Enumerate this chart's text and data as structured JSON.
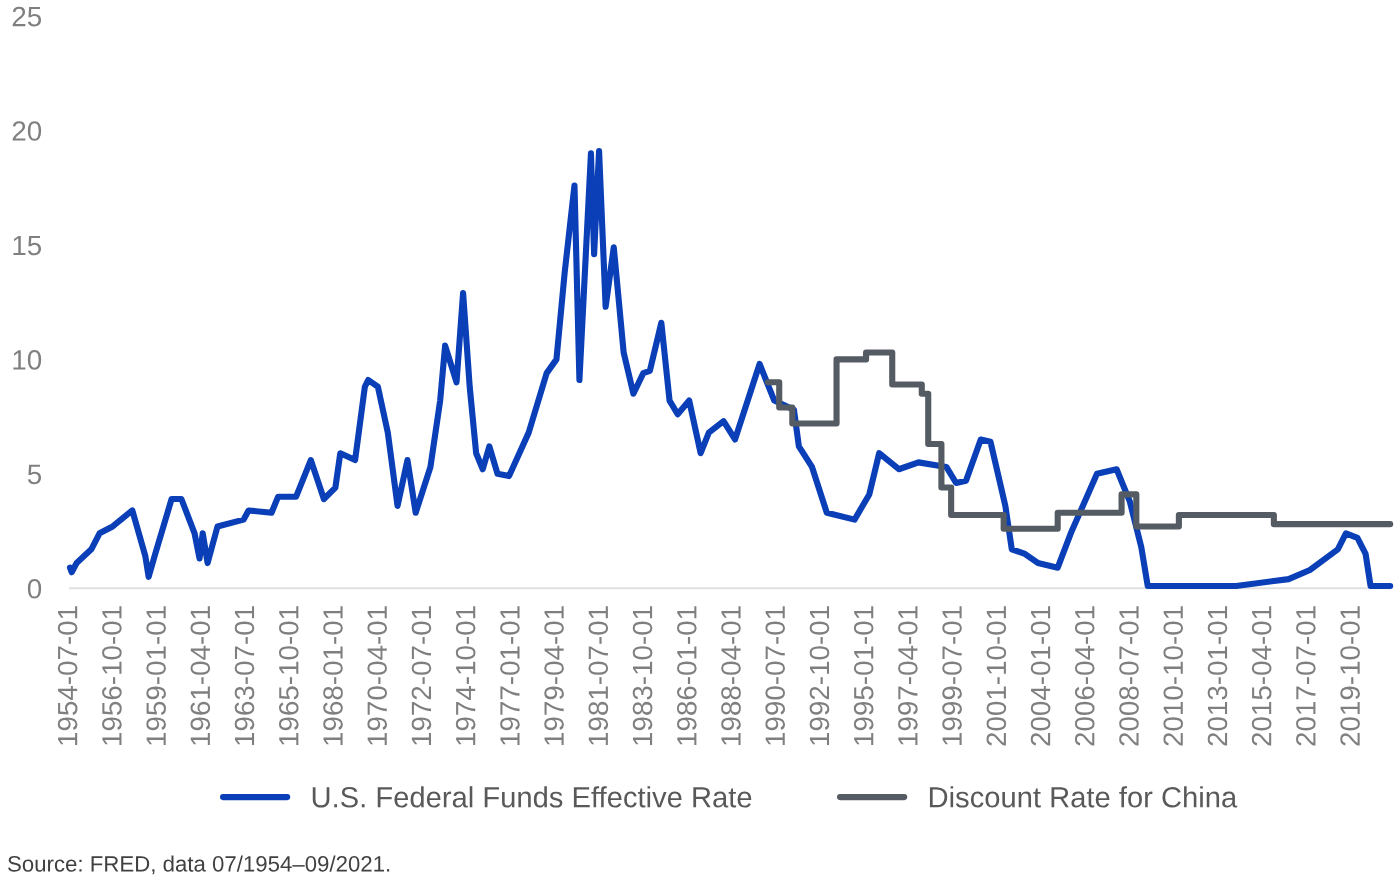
{
  "chart_data": {
    "type": "line",
    "xticks": [
      "1954-07-01",
      "1956-10-01",
      "1959-01-01",
      "1961-04-01",
      "1963-07-01",
      "1965-10-01",
      "1968-01-01",
      "1970-04-01",
      "1972-07-01",
      "1974-10-01",
      "1977-01-01",
      "1979-04-01",
      "1981-07-01",
      "1983-10-01",
      "1986-01-01",
      "1988-04-01",
      "1990-07-01",
      "1992-10-01",
      "1995-01-01",
      "1997-04-01",
      "1999-07-01",
      "2001-10-01",
      "2004-01-01",
      "2006-04-01",
      "2008-07-01",
      "2010-10-01",
      "2013-01-01",
      "2015-04-01",
      "2017-07-01",
      "2019-10-01"
    ],
    "xlim": [
      "1954-07",
      "2021-09"
    ],
    "ylim": [
      0,
      25
    ],
    "yticks": [
      0,
      5,
      10,
      15,
      20,
      25
    ],
    "grid": false,
    "legend": "bottom",
    "annotations": [
      "Source: FRED, data 07/1954–09/2021."
    ],
    "series": [
      {
        "name": "U.S. Federal Funds Effective Rate",
        "color": "#0a3fb8",
        "x": [
          "1954-07",
          "1954-08",
          "1954-11",
          "1955-08",
          "1956-01",
          "1956-09",
          "1957-09",
          "1958-05",
          "1958-07",
          "1958-11",
          "1959-09",
          "1960-03",
          "1960-11",
          "1961-02",
          "1961-04",
          "1961-07",
          "1962-01",
          "1963-05",
          "1963-08",
          "1964-10",
          "1965-02",
          "1966-01",
          "1966-10",
          "1967-06",
          "1968-01",
          "1968-04",
          "1969-01",
          "1969-07",
          "1969-09",
          "1970-03",
          "1970-09",
          "1971-03",
          "1971-09",
          "1972-02",
          "1972-11",
          "1973-05",
          "1973-08",
          "1974-03",
          "1974-07",
          "1974-11",
          "1975-03",
          "1975-07",
          "1975-11",
          "1976-04",
          "1976-11",
          "1977-11",
          "1978-10",
          "1979-04",
          "1979-09",
          "1980-03",
          "1980-06",
          "1981-01",
          "1981-03",
          "1981-06",
          "1981-10",
          "1982-03",
          "1982-09",
          "1983-03",
          "1983-09",
          "1984-01",
          "1984-08",
          "1985-01",
          "1985-06",
          "1986-01",
          "1986-08",
          "1987-01",
          "1987-10",
          "1988-05",
          "1989-08",
          "1990-05",
          "1991-05",
          "1991-08",
          "1992-04",
          "1993-01",
          "1994-06",
          "1995-03",
          "1995-09",
          "1996-09",
          "1997-09",
          "1999-02",
          "1999-08",
          "2000-02",
          "2000-11",
          "2001-05",
          "2002-02",
          "2002-06",
          "2003-02",
          "2003-10",
          "2004-10",
          "2005-06",
          "2006-10",
          "2007-10",
          "2008-06",
          "2009-01",
          "2009-05",
          "2013-11",
          "2016-07",
          "2017-08",
          "2019-01",
          "2019-06",
          "2020-01",
          "2020-06",
          "2020-09",
          "2021-09"
        ],
        "values": [
          0.9,
          0.7,
          1.1,
          1.7,
          2.4,
          2.7,
          3.4,
          1.4,
          0.5,
          1.5,
          3.9,
          3.9,
          2.4,
          1.3,
          2.4,
          1.1,
          2.7,
          3.0,
          3.4,
          3.3,
          4.0,
          4.0,
          5.6,
          3.9,
          4.4,
          5.9,
          5.6,
          8.8,
          9.1,
          8.8,
          6.8,
          3.6,
          5.6,
          3.3,
          5.3,
          8.2,
          10.6,
          9.0,
          12.9,
          8.8,
          5.9,
          5.2,
          6.2,
          5.0,
          4.9,
          6.8,
          9.4,
          10.0,
          13.8,
          17.6,
          9.1,
          19.0,
          14.6,
          19.1,
          12.3,
          14.9,
          10.3,
          8.5,
          9.4,
          9.5,
          11.6,
          8.2,
          7.6,
          8.2,
          5.9,
          6.8,
          7.3,
          6.5,
          9.8,
          8.2,
          7.8,
          6.2,
          5.3,
          3.3,
          3.0,
          4.1,
          5.9,
          5.2,
          5.5,
          5.3,
          4.6,
          4.7,
          6.5,
          6.4,
          3.6,
          1.7,
          1.5,
          1.1,
          0.9,
          2.4,
          5.0,
          5.2,
          3.8,
          1.8,
          0.1,
          0.1,
          0.4,
          0.8,
          1.7,
          2.4,
          2.2,
          1.5,
          0.1,
          0.1
        ]
      },
      {
        "name": "Discount Rate for China",
        "type": "step",
        "color": "#545b62",
        "x": [
          "1990-01",
          "1990-08",
          "1991-04",
          "1993-07",
          "1995-01",
          "1996-05",
          "1997-11",
          "1998-03",
          "1998-11",
          "1999-05",
          "2002-01",
          "2004-10",
          "2008-01",
          "2008-10",
          "2010-12",
          "2015-10",
          "2021-09"
        ],
        "values": [
          9.0,
          7.9,
          7.2,
          10.0,
          10.3,
          8.9,
          8.5,
          6.3,
          4.4,
          3.2,
          2.6,
          3.3,
          4.1,
          2.7,
          3.2,
          2.8,
          2.8
        ]
      }
    ]
  }
}
